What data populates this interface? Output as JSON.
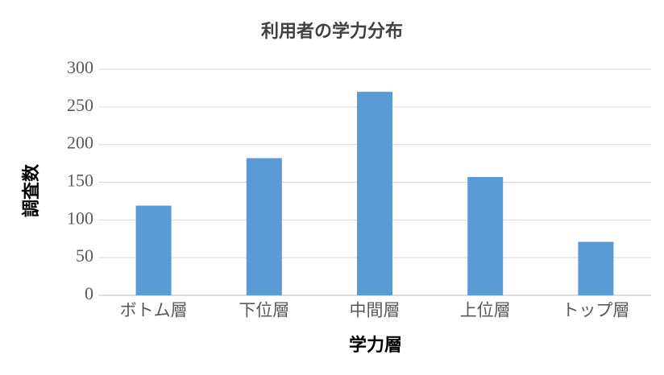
{
  "chart_data": {
    "type": "bar",
    "title": "利用者の学力分布",
    "x_label": "学力層",
    "y_label": "調査数",
    "categories": [
      "ボトム層",
      "下位層",
      "中間層",
      "上位層",
      "トップ層"
    ],
    "values": [
      119,
      182,
      270,
      157,
      71
    ],
    "color": "#5b9bd5",
    "ylim": [
      0,
      300
    ],
    "yticks": [
      0,
      50,
      100,
      150,
      200,
      250,
      300
    ],
    "grid": true
  }
}
